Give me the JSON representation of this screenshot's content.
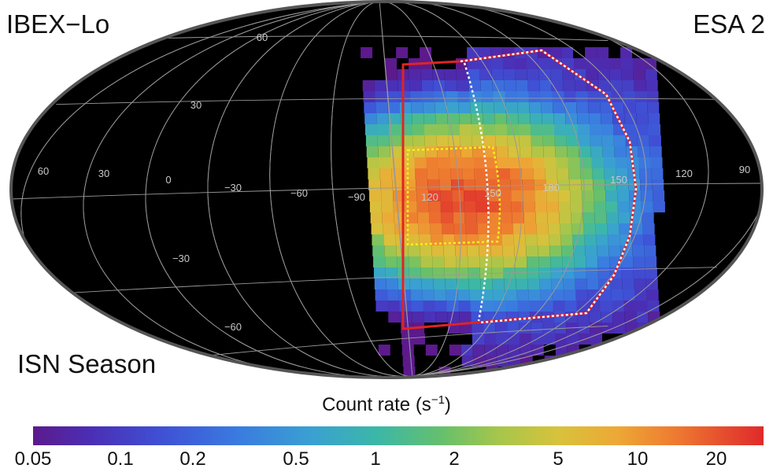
{
  "labels": {
    "instrument": "IBEX−Lo",
    "energy_step": "ESA 2",
    "season": "ISN Season"
  },
  "colorbar": {
    "title_prefix": "Count rate (s",
    "title_exponent": "−1",
    "title_suffix": ")",
    "scale": "log",
    "range": [
      0.05,
      30
    ],
    "ticks": [
      "0.05",
      "0.1",
      "0.2",
      "0.5",
      "1",
      "2",
      "5",
      "10",
      "20"
    ],
    "colors": [
      "#5c1a8c",
      "#3f52d6",
      "#3aa0d2",
      "#66c06c",
      "#d8c23c",
      "#ee7a30",
      "#e02a2a"
    ]
  },
  "map": {
    "projection": "Mollweide",
    "background_color": "#000000",
    "gridline_color": "#9a9a9a",
    "longitude_labels": [
      "60",
      "30",
      "0",
      "−30",
      "−60",
      "−90",
      "120",
      "150",
      "180",
      "150",
      "120",
      "90"
    ],
    "latitude_labels": [
      "60",
      "30",
      "−30",
      "−60"
    ],
    "regions": [
      {
        "name": "ISN season boundary",
        "color": "#e02424",
        "style": "solid"
      },
      {
        "name": "Outer ISN region",
        "color": "#ffffff",
        "style": "dotted"
      },
      {
        "name": "Primary ISN peak region",
        "color": "#f2f21a",
        "style": "dotted"
      }
    ],
    "peak_count_rate": 20
  }
}
